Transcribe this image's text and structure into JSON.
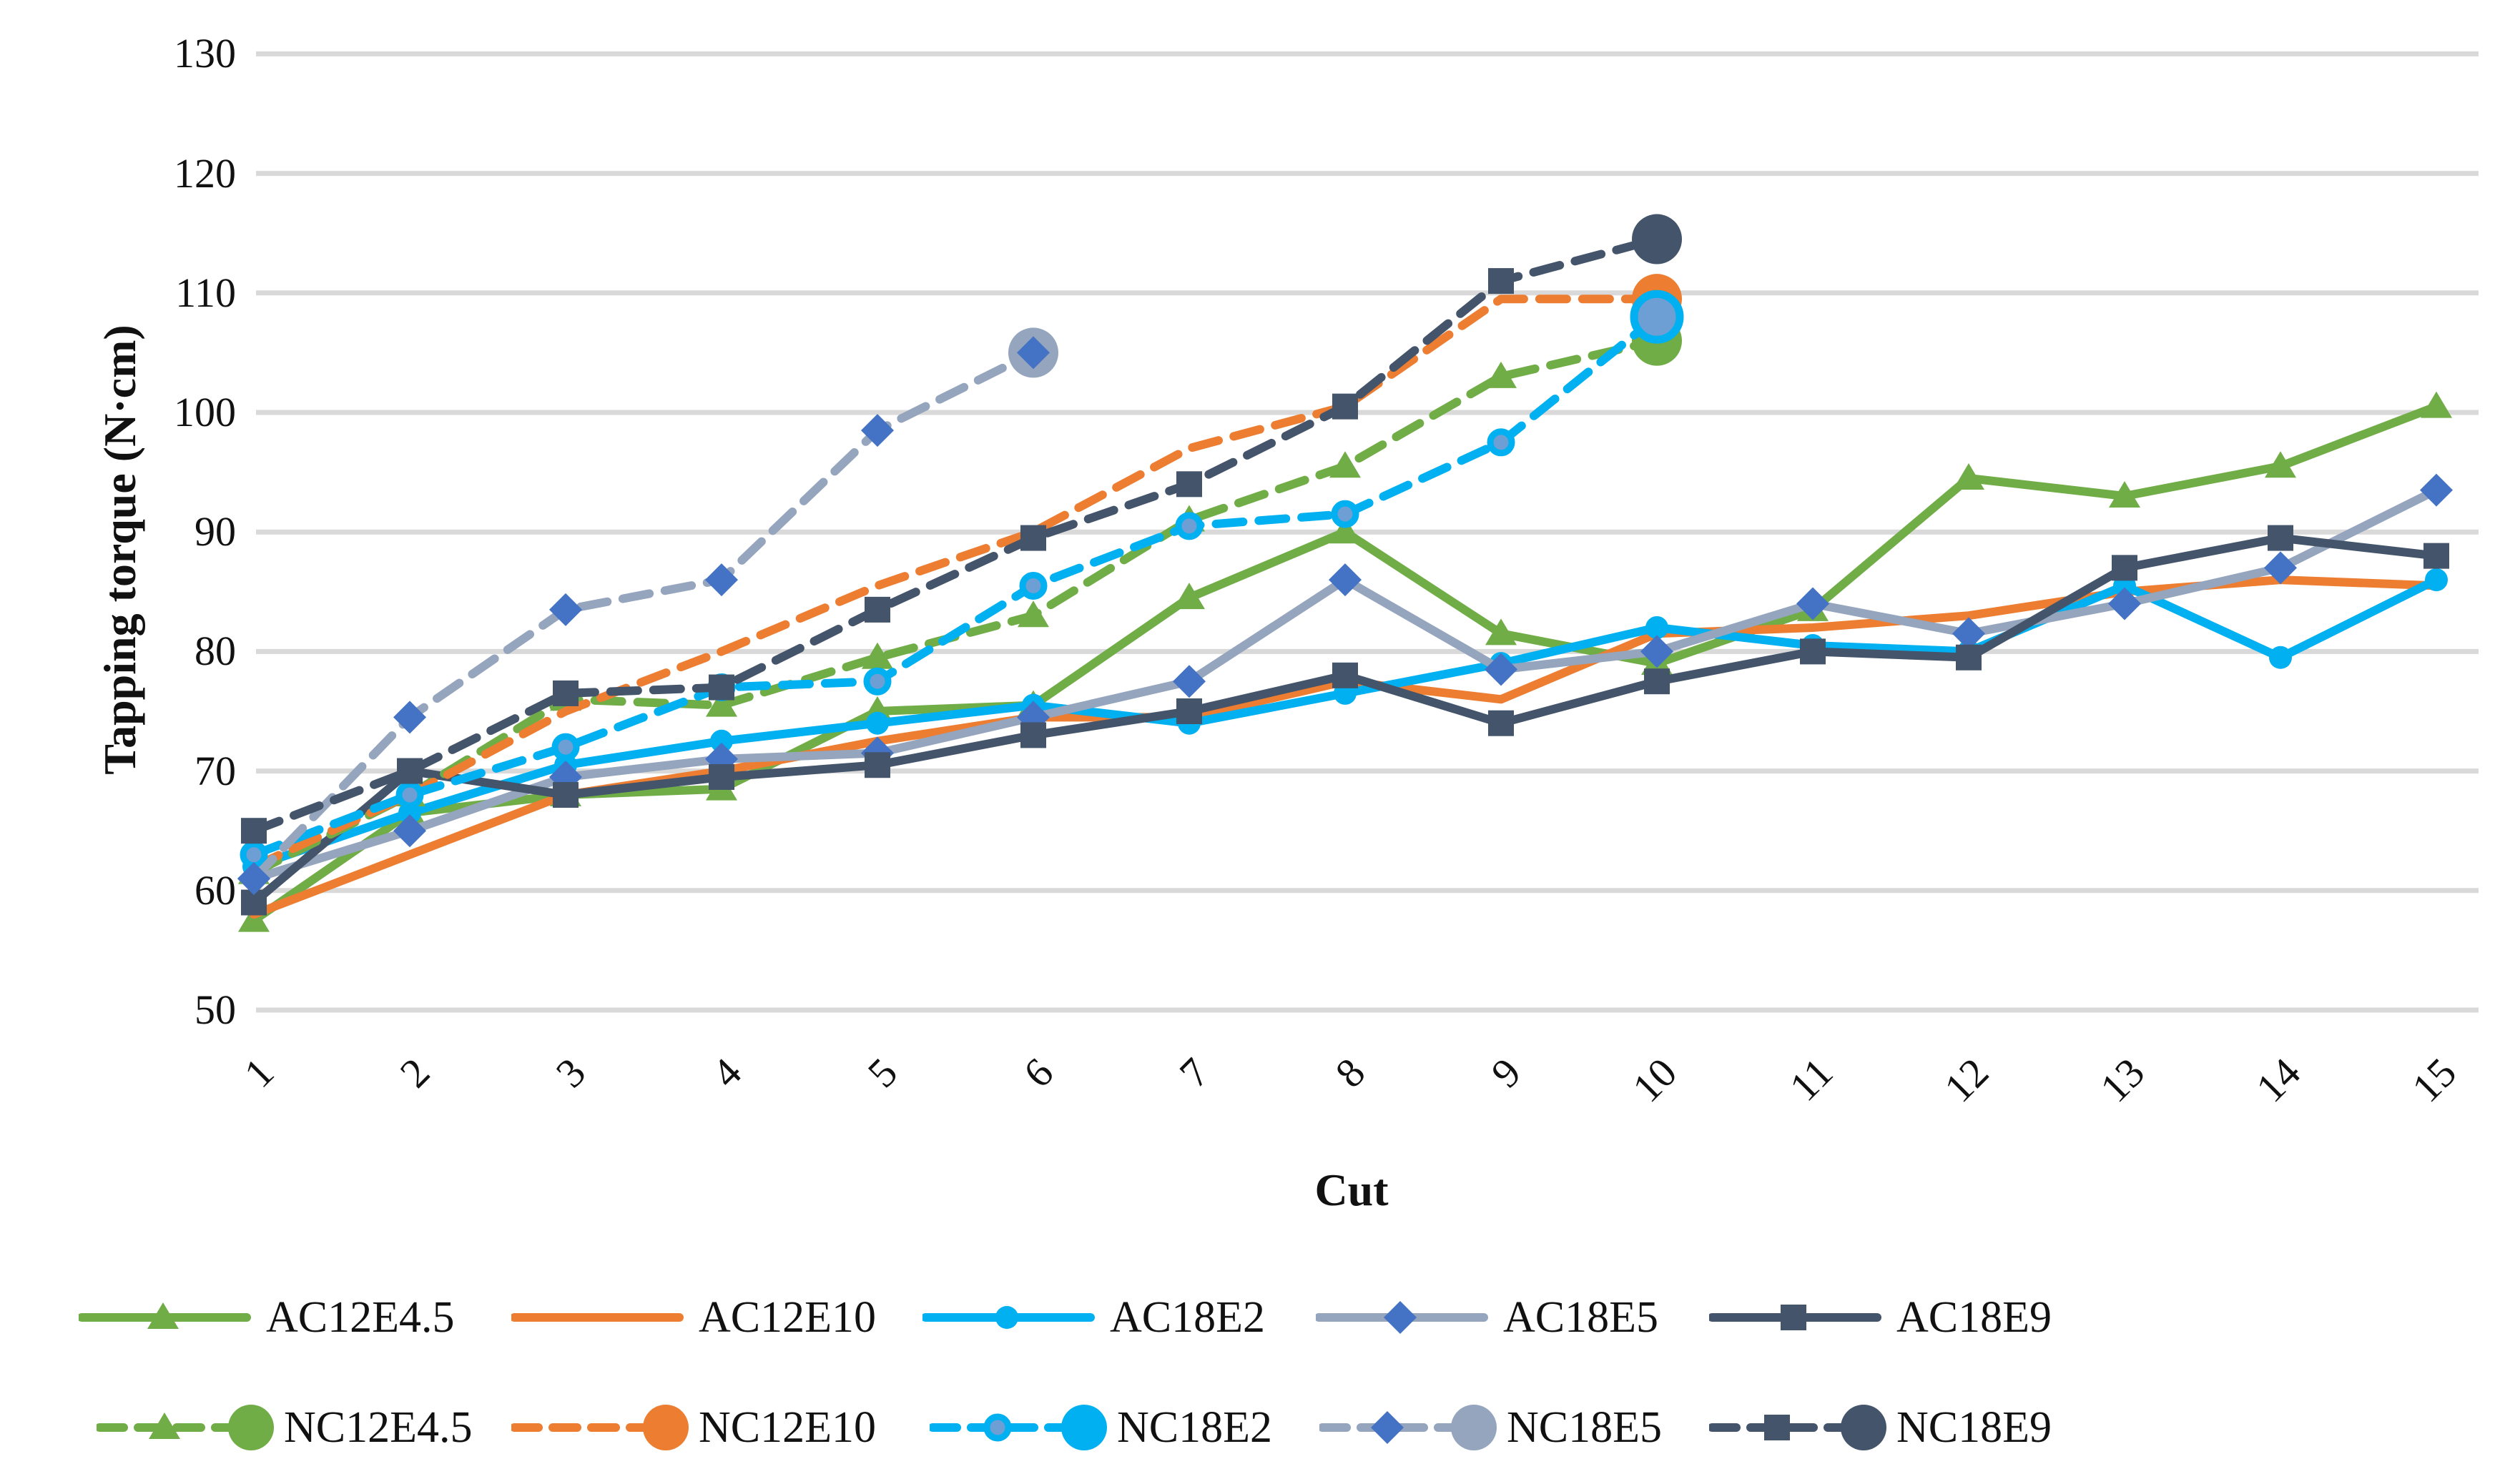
{
  "chart_data": {
    "type": "line",
    "title": "",
    "xlabel": "Cut",
    "ylabel": "Tapping torque (N·cm)",
    "x": [
      1,
      2,
      3,
      4,
      5,
      6,
      7,
      8,
      9,
      10,
      11,
      12,
      13,
      14,
      15
    ],
    "ylim": [
      50,
      130
    ],
    "yticks": [
      50,
      60,
      70,
      80,
      90,
      100,
      110,
      120,
      130
    ],
    "grid": "horizontal",
    "gridline_color": "#D9D9D9",
    "legend_position": "bottom-two-rows",
    "series": [
      {
        "name": "AC12E4.5",
        "color": "#70AD47",
        "marker_color": "#70AD47",
        "dashed": false,
        "marker": "triangle",
        "end_big_circle": false,
        "values": [
          57.5,
          66.5,
          68,
          68.5,
          75,
          75.5,
          84.5,
          90,
          81.5,
          79,
          83.5,
          94.5,
          93,
          95.5,
          100.5
        ]
      },
      {
        "name": "AC12E10",
        "color": "#ED7D31",
        "marker_color": "#ED7D31",
        "dashed": false,
        "marker": "none",
        "end_big_circle": false,
        "values": [
          58,
          63,
          68,
          70,
          72.5,
          74.5,
          74.5,
          77.5,
          76,
          81.5,
          82,
          83,
          85,
          86,
          85.5
        ]
      },
      {
        "name": "AC18E2",
        "color": "#00B0F0",
        "marker_color": "#00B0F0",
        "dashed": false,
        "marker": "circle",
        "end_big_circle": false,
        "values": [
          62,
          66.5,
          70.5,
          72.5,
          74,
          75.5,
          74,
          76.5,
          79,
          82,
          80.5,
          80,
          85.5,
          79.5,
          86
        ]
      },
      {
        "name": "AC18E5",
        "color": "#95A5BD",
        "marker_color": "#4472C4",
        "dashed": false,
        "marker": "diamond",
        "end_big_circle": false,
        "values": [
          61,
          65,
          69.5,
          71,
          71.5,
          74.5,
          77.5,
          86,
          78.5,
          80,
          84,
          81.5,
          84,
          87,
          93.5
        ]
      },
      {
        "name": "AC18E9",
        "color": "#44546A",
        "marker_color": "#44546A",
        "dashed": false,
        "marker": "square",
        "end_big_circle": false,
        "values": [
          59,
          70,
          68,
          69.5,
          70.5,
          73,
          75,
          78,
          74,
          77.5,
          80,
          79.5,
          87,
          89.5,
          88
        ]
      },
      {
        "name": "NC12E4.5",
        "color": "#70AD47",
        "marker_color": "#70AD47",
        "dashed": true,
        "marker": "triangle",
        "end_big_circle": true,
        "end_circle_color": "#70AD47",
        "values": [
          61.5,
          68,
          76,
          75.5,
          79.5,
          83,
          91,
          95.5,
          103,
          106,
          null,
          null,
          null,
          null,
          null
        ]
      },
      {
        "name": "NC12E10",
        "color": "#ED7D31",
        "marker_color": "#ED7D31",
        "dashed": true,
        "marker": "none",
        "end_big_circle": true,
        "end_circle_color": "#ED7D31",
        "values": [
          62,
          68,
          75,
          80,
          85.5,
          90,
          97,
          100.5,
          109.5,
          109.5,
          null,
          null,
          null,
          null,
          null
        ]
      },
      {
        "name": "NC18E2",
        "color": "#00B0F0",
        "marker_color": "#6E9FD4",
        "dashed": true,
        "marker": "ring-circle",
        "end_big_circle": true,
        "end_circle_color": "#6E9FD4",
        "end_circle_ring": "#00B0F0",
        "values": [
          63,
          68,
          72,
          77,
          77.5,
          85.5,
          90.5,
          91.5,
          97.5,
          108,
          null,
          null,
          null,
          null,
          null
        ]
      },
      {
        "name": "NC18E5",
        "color": "#95A5BD",
        "marker_color": "#4472C4",
        "dashed": true,
        "marker": "diamond",
        "end_big_circle": true,
        "end_circle_color": "#95A5BD",
        "values": [
          61,
          74.5,
          83.5,
          86,
          98.5,
          105,
          null,
          null,
          null,
          null,
          null,
          null,
          null,
          null,
          null
        ]
      },
      {
        "name": "NC18E9",
        "color": "#44546A",
        "marker_color": "#44546A",
        "dashed": true,
        "marker": "square",
        "end_big_circle": true,
        "end_circle_color": "#44546A",
        "values": [
          65,
          70,
          76.5,
          77,
          83.5,
          89.5,
          94,
          100.5,
          111,
          114.5,
          null,
          null,
          null,
          null,
          null
        ]
      }
    ],
    "legend_rows": [
      [
        "AC12E4.5",
        "AC12E10",
        "AC18E2",
        "AC18E5",
        "AC18E9"
      ],
      [
        "NC12E4.5",
        "NC12E10",
        "NC18E2",
        "NC18E5",
        "NC18E9"
      ]
    ]
  },
  "palette": {
    "green": "#70AD47",
    "orange": "#ED7D31",
    "cyan": "#00B0F0",
    "gray_blue": "#95A5BD",
    "diamond_blue": "#4472C4",
    "dark_slate": "#44546A",
    "gridline": "#D9D9D9"
  }
}
